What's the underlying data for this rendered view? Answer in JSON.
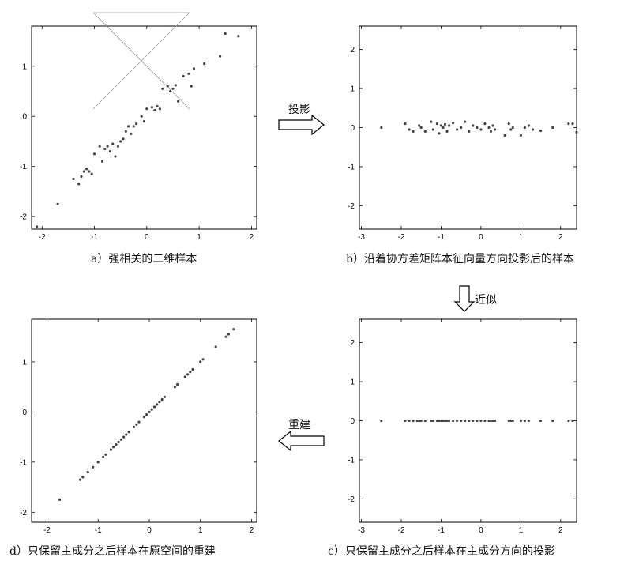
{
  "chart_data": [
    {
      "id": "a",
      "type": "scatter",
      "title": "",
      "caption": "a）强相关的二维样本",
      "xlim": [
        -2.2,
        2.1
      ],
      "ylim": [
        -2.25,
        1.8
      ],
      "xticks": [
        -2,
        -1,
        0,
        1,
        2
      ],
      "yticks": [
        -2,
        -1,
        0,
        1
      ],
      "x": [
        -2.1,
        -1.7,
        -1.4,
        -1.3,
        -1.25,
        -1.2,
        -1.15,
        -1.1,
        -1.05,
        -1.0,
        -0.9,
        -0.85,
        -0.8,
        -0.75,
        -0.7,
        -0.65,
        -0.6,
        -0.55,
        -0.5,
        -0.45,
        -0.4,
        -0.35,
        -0.3,
        -0.25,
        -0.2,
        -0.1,
        -0.05,
        0.0,
        0.1,
        0.15,
        0.2,
        0.25,
        0.3,
        0.4,
        0.45,
        0.5,
        0.55,
        0.6,
        0.7,
        0.8,
        0.85,
        0.9,
        1.1,
        1.4,
        1.5,
        1.75
      ],
      "y": [
        -2.2,
        -1.75,
        -1.25,
        -1.35,
        -1.2,
        -1.1,
        -1.05,
        -1.1,
        -1.15,
        -0.75,
        -0.6,
        -0.9,
        -0.65,
        -0.6,
        -0.7,
        -0.55,
        -0.8,
        -0.6,
        -0.5,
        -0.45,
        -0.3,
        -0.2,
        -0.35,
        -0.2,
        -0.15,
        0.0,
        -0.1,
        0.15,
        0.18,
        0.12,
        0.2,
        0.15,
        0.55,
        0.6,
        0.5,
        0.55,
        0.62,
        0.3,
        0.8,
        0.85,
        0.6,
        0.95,
        1.05,
        1.2,
        1.65,
        1.6
      ]
    },
    {
      "id": "b",
      "type": "scatter",
      "title": "",
      "caption": "b）沿着协方差矩阵本征向量方向投影后的样本",
      "xlim": [
        -3.05,
        2.4
      ],
      "ylim": [
        -2.6,
        2.6
      ],
      "xticks": [
        -3,
        -2,
        -1,
        0,
        1,
        2
      ],
      "yticks": [
        -2,
        -1,
        0,
        1,
        2
      ],
      "x": [
        -2.5,
        -1.9,
        -1.8,
        -1.7,
        -1.55,
        -1.5,
        -1.4,
        -1.25,
        -1.2,
        -1.1,
        -1.05,
        -1.0,
        -0.95,
        -0.9,
        -0.85,
        -0.8,
        -0.7,
        -0.6,
        -0.5,
        -0.4,
        -0.3,
        -0.2,
        -0.1,
        0.0,
        0.1,
        0.2,
        0.25,
        0.3,
        0.35,
        0.6,
        0.7,
        0.75,
        0.8,
        1.0,
        1.1,
        1.2,
        1.3,
        1.5,
        1.8,
        2.2,
        2.3,
        2.4
      ],
      "y": [
        0.0,
        0.1,
        -0.05,
        -0.1,
        0.05,
        0.0,
        -0.1,
        0.15,
        -0.05,
        0.1,
        -0.15,
        0.05,
        0.0,
        0.08,
        -0.1,
        0.05,
        0.12,
        -0.05,
        0.0,
        0.15,
        -0.1,
        0.05,
        0.0,
        -0.05,
        0.1,
        0.0,
        -0.1,
        0.05,
        -0.05,
        -0.2,
        0.1,
        -0.05,
        0.0,
        -0.2,
        0.0,
        0.05,
        -0.05,
        -0.08,
        0.0,
        0.1,
        0.1,
        -0.12
      ]
    },
    {
      "id": "c",
      "type": "scatter",
      "title": "",
      "caption": "c）只保留主成分之后样本在主成分方向的投影",
      "xlim": [
        -3.05,
        2.4
      ],
      "ylim": [
        -2.6,
        2.6
      ],
      "xticks": [
        -3,
        -2,
        -1,
        0,
        1,
        2
      ],
      "yticks": [
        -2,
        -1,
        0,
        1,
        2
      ],
      "x": [
        -2.5,
        -1.9,
        -1.8,
        -1.7,
        -1.6,
        -1.55,
        -1.5,
        -1.4,
        -1.25,
        -1.2,
        -1.1,
        -1.05,
        -1.0,
        -0.95,
        -0.9,
        -0.85,
        -0.8,
        -0.7,
        -0.6,
        -0.5,
        -0.4,
        -0.3,
        -0.2,
        -0.1,
        0.0,
        0.1,
        0.2,
        0.25,
        0.3,
        0.35,
        0.7,
        0.75,
        0.8,
        1.0,
        1.1,
        1.2,
        1.5,
        1.8,
        2.2,
        2.3
      ],
      "y": [
        0,
        0,
        0,
        0,
        0,
        0,
        0,
        0,
        0,
        0,
        0,
        0,
        0,
        0,
        0,
        0,
        0,
        0,
        0,
        0,
        0,
        0,
        0,
        0,
        0,
        0,
        0,
        0,
        0,
        0,
        0,
        0,
        0,
        0,
        0,
        0,
        0,
        0,
        0,
        0
      ]
    },
    {
      "id": "d",
      "type": "scatter",
      "title": "",
      "caption": "d）只保留主成分之后样本在原空间的重建",
      "xlim": [
        -2.3,
        2.1
      ],
      "ylim": [
        -2.2,
        1.85
      ],
      "xticks": [
        -2,
        -1,
        0,
        1,
        2
      ],
      "yticks": [
        -2,
        -1,
        0,
        1
      ],
      "x": [
        -1.75,
        -1.35,
        -1.3,
        -1.2,
        -1.1,
        -1.0,
        -0.9,
        -0.85,
        -0.75,
        -0.7,
        -0.65,
        -0.6,
        -0.55,
        -0.5,
        -0.45,
        -0.4,
        -0.3,
        -0.25,
        -0.2,
        -0.1,
        -0.05,
        0.0,
        0.05,
        0.1,
        0.15,
        0.2,
        0.25,
        0.3,
        0.5,
        0.55,
        0.7,
        0.75,
        0.8,
        0.85,
        1.0,
        1.05,
        1.3,
        1.5,
        1.55,
        1.65
      ],
      "y": [
        -1.75,
        -1.35,
        -1.3,
        -1.2,
        -1.1,
        -1.0,
        -0.9,
        -0.85,
        -0.75,
        -0.7,
        -0.65,
        -0.6,
        -0.55,
        -0.5,
        -0.45,
        -0.4,
        -0.3,
        -0.25,
        -0.2,
        -0.1,
        -0.05,
        0.0,
        0.05,
        0.1,
        0.15,
        0.2,
        0.25,
        0.3,
        0.5,
        0.55,
        0.7,
        0.75,
        0.8,
        0.85,
        1.0,
        1.05,
        1.3,
        1.5,
        1.55,
        1.65
      ]
    }
  ],
  "arrows": {
    "projection_label": "投影",
    "approx_label": "近似",
    "reconstruct_label": "重建"
  },
  "colors": {
    "marker": "#444444",
    "axis": "#000000",
    "overlay_line": "#9a9a9a"
  }
}
